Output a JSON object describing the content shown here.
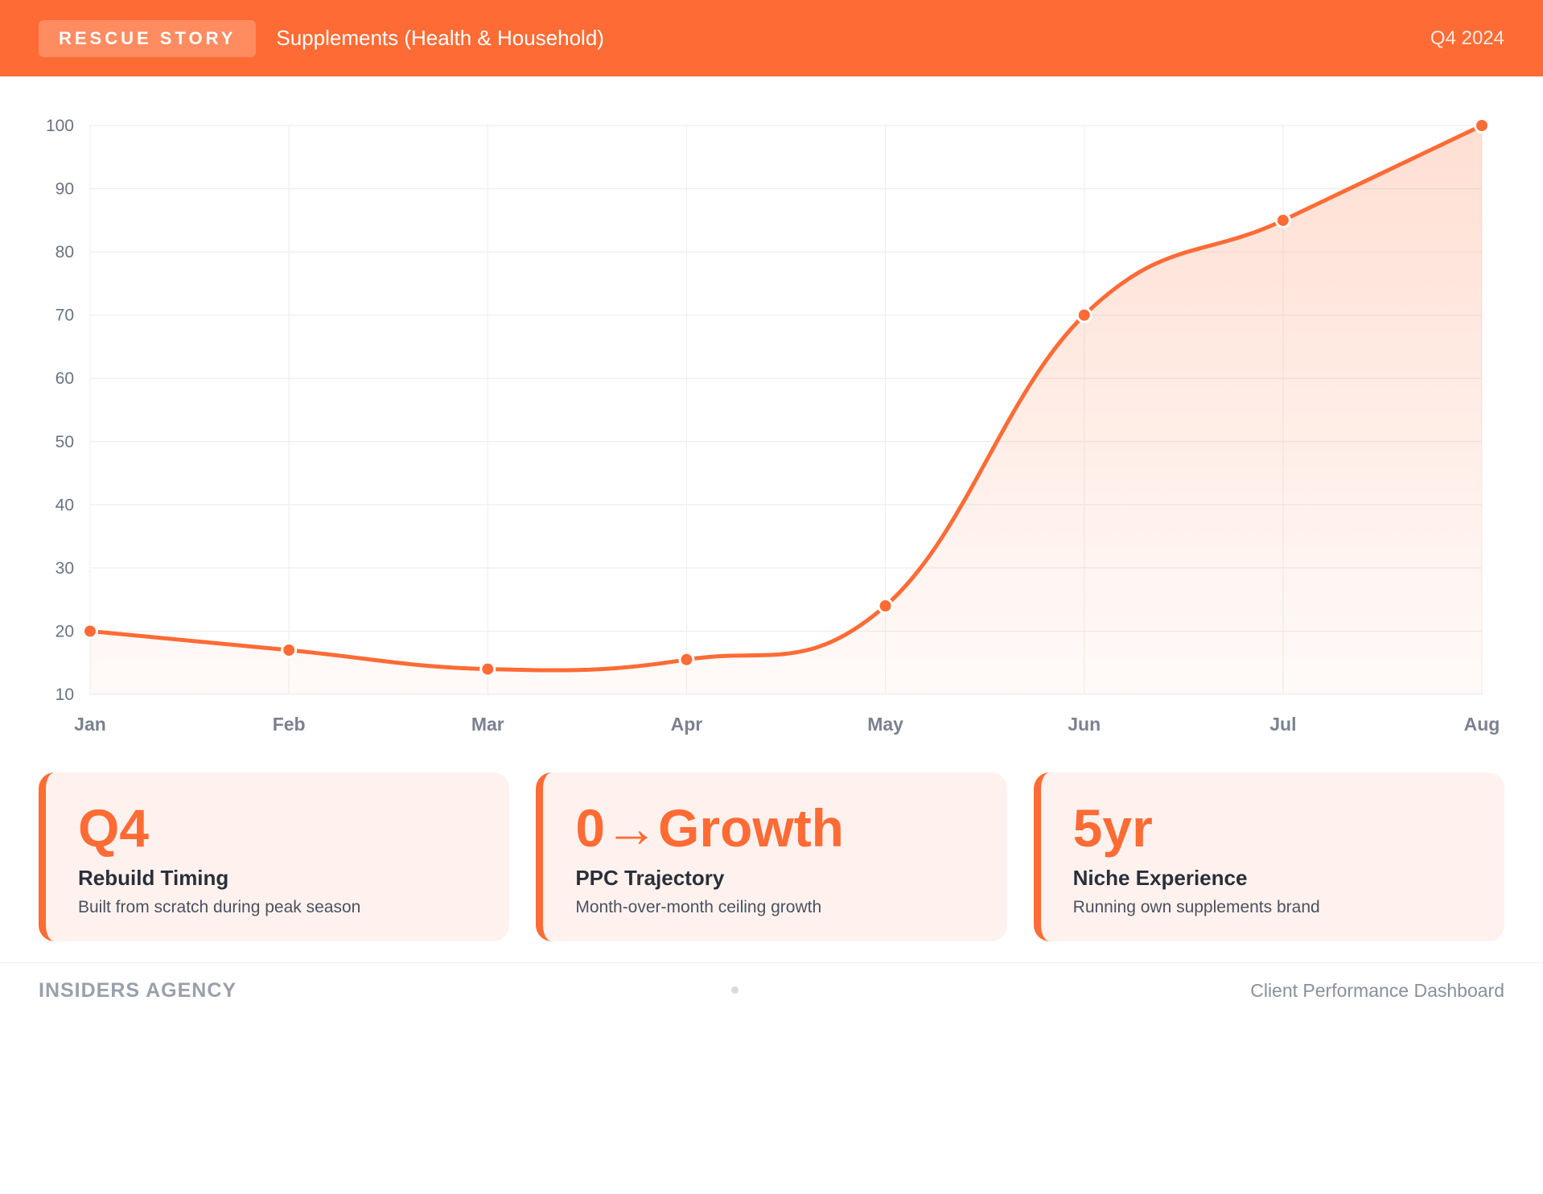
{
  "header": {
    "badge": "RESCUE STORY",
    "subtitle": "Supplements (Health & Household)",
    "period": "Q4 2024"
  },
  "colors": {
    "accent": "#ff6b35",
    "card_bg": "#fff2ee"
  },
  "chart_data": {
    "type": "area",
    "categories": [
      "Jan",
      "Feb",
      "Mar",
      "Apr",
      "May",
      "Jun",
      "Jul",
      "Aug"
    ],
    "series": [
      {
        "values": [
          20,
          17,
          14,
          15.5,
          24,
          70,
          85,
          100
        ]
      }
    ],
    "ylim": [
      10,
      100
    ],
    "yticks": [
      10,
      20,
      30,
      40,
      50,
      60,
      70,
      80,
      90,
      100
    ],
    "grid": true
  },
  "cards": [
    {
      "value": "Q4",
      "label": "Rebuild Timing",
      "desc": "Built from scratch during peak season"
    },
    {
      "value": "0→Growth",
      "label": "PPC Trajectory",
      "desc": "Month-over-month ceiling growth"
    },
    {
      "value": "5yr",
      "label": "Niche Experience",
      "desc": "Running own supplements brand"
    }
  ],
  "footer": {
    "left": "INSIDERS AGENCY",
    "right": "Client Performance Dashboard"
  }
}
